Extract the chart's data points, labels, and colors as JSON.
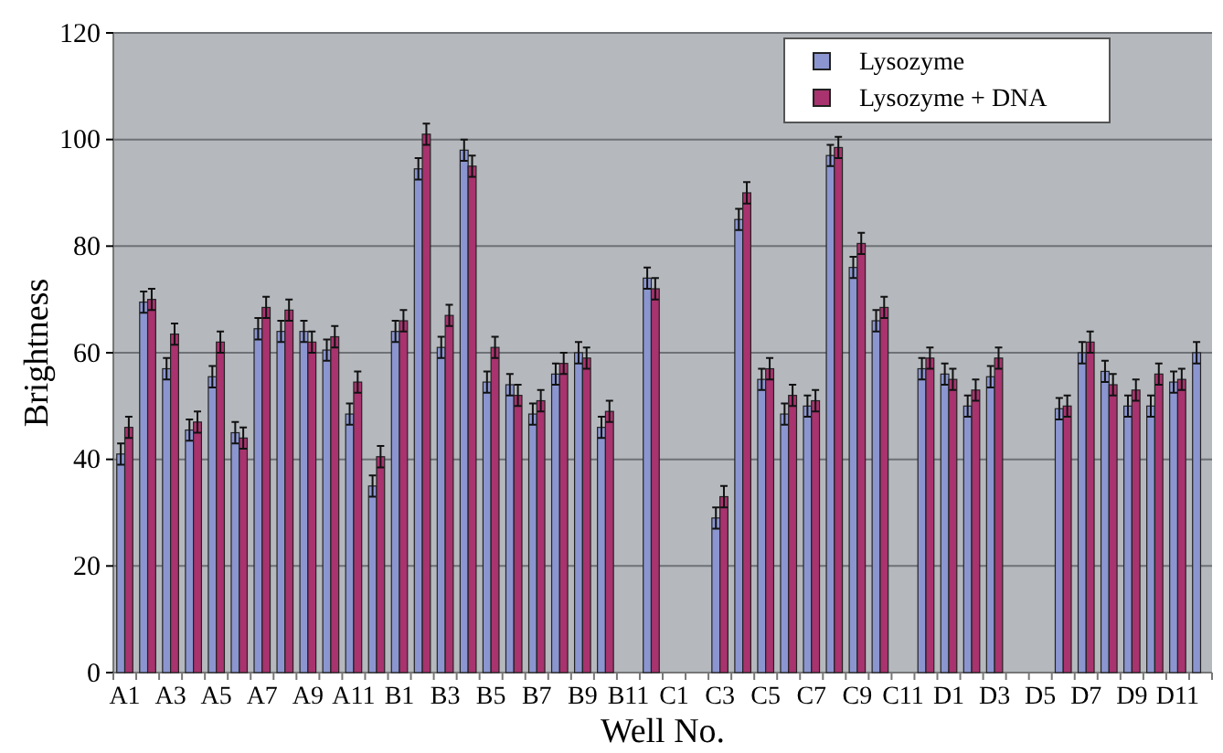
{
  "chart_data": {
    "type": "bar",
    "xlabel": "Well No.",
    "ylabel": "Brightness",
    "categories": [
      "A1",
      null,
      "A3",
      null,
      "A5",
      null,
      "A7",
      null,
      "A9",
      null,
      "A11",
      null,
      "B1",
      null,
      "B3",
      null,
      "B5",
      null,
      "B7",
      null,
      "B9",
      null,
      "B11",
      null,
      "C1",
      null,
      "C3",
      null,
      "C5",
      null,
      "C7",
      null,
      "C9",
      null,
      "C11",
      null,
      "D1",
      null,
      "D3",
      null,
      "D5",
      null,
      "D7",
      null,
      "D9",
      null,
      "D11",
      null
    ],
    "series": [
      {
        "name": "Lysozyme",
        "color": "#8b96d0",
        "values": [
          41,
          69.5,
          57,
          45.5,
          55.5,
          45,
          64.5,
          64,
          64,
          60.5,
          48.5,
          35,
          64,
          94.5,
          61,
          98,
          54.5,
          54,
          48.5,
          56,
          60,
          46,
          null,
          74,
          null,
          null,
          29,
          85,
          55,
          48.5,
          50,
          97,
          76,
          66,
          null,
          57,
          56,
          50,
          55.5,
          null,
          null,
          49.5,
          60,
          56.5,
          50,
          50,
          54.5,
          60
        ],
        "errors": [
          2,
          2,
          2,
          2,
          2,
          2,
          2,
          2,
          2,
          2,
          2,
          2,
          2,
          2,
          2,
          2,
          2,
          2,
          2,
          2,
          2,
          2,
          null,
          2,
          null,
          null,
          2,
          2,
          2,
          2,
          2,
          2,
          2,
          2,
          null,
          2,
          2,
          2,
          2,
          null,
          null,
          2,
          2,
          2,
          2,
          2,
          2,
          2
        ]
      },
      {
        "name": "Lysozyme + DNA",
        "color": "#a8336e",
        "values": [
          46,
          70,
          63.5,
          47,
          62,
          44,
          68.5,
          68,
          62,
          63,
          54.5,
          40.5,
          66,
          101,
          67,
          95,
          61,
          52,
          51,
          58,
          59,
          49,
          null,
          72,
          null,
          null,
          33,
          90,
          57,
          52,
          51,
          98.5,
          80.5,
          68.5,
          null,
          59,
          55,
          53,
          59,
          null,
          null,
          50,
          62,
          54,
          53,
          56,
          55,
          null
        ],
        "errors": [
          2,
          2,
          2,
          2,
          2,
          2,
          2,
          2,
          2,
          2,
          2,
          2,
          2,
          2,
          2,
          2,
          2,
          2,
          2,
          2,
          2,
          2,
          null,
          2,
          null,
          null,
          2,
          2,
          2,
          2,
          2,
          2,
          2,
          2,
          null,
          2,
          2,
          2,
          2,
          null,
          null,
          2,
          2,
          2,
          2,
          2,
          2,
          null
        ]
      }
    ],
    "ylim": [
      0,
      120
    ],
    "yticks": [
      0,
      20,
      40,
      60,
      80,
      100,
      120
    ],
    "grid": "y",
    "legend": "top right"
  }
}
